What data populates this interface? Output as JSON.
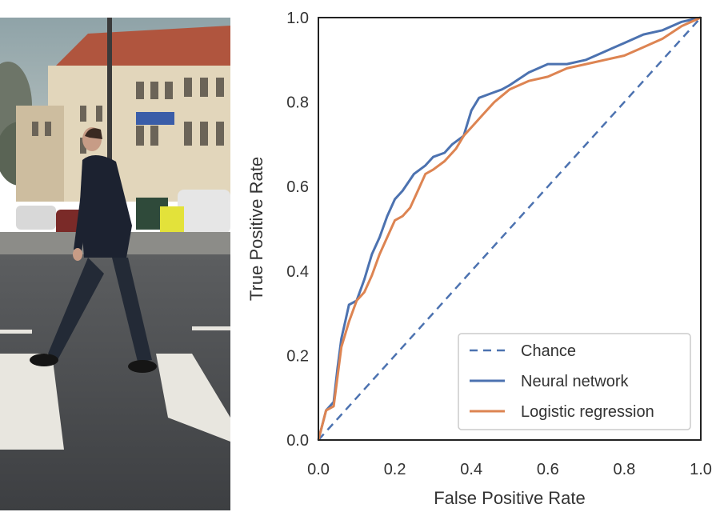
{
  "photo": {
    "subject": "pedestrian-crossing-street"
  },
  "chart_data": {
    "type": "line",
    "xlabel": "False Positive Rate",
    "ylabel": "True Positive Rate",
    "xlim": [
      0.0,
      1.0
    ],
    "ylim": [
      0.0,
      1.0
    ],
    "xticks": [
      "0.0",
      "0.2",
      "0.4",
      "0.6",
      "0.8",
      "1.0"
    ],
    "yticks": [
      "0.0",
      "0.2",
      "0.4",
      "0.6",
      "0.8",
      "1.0"
    ],
    "grid": false,
    "legend_position": "bottom-right",
    "series": [
      {
        "name": "Chance",
        "color": "#4c72b0",
        "dash": true,
        "x": [
          0.0,
          1.0
        ],
        "y": [
          0.0,
          1.0
        ]
      },
      {
        "name": "Neural network",
        "color": "#4c72b0",
        "dash": false,
        "x": [
          0.0,
          0.02,
          0.04,
          0.05,
          0.06,
          0.07,
          0.08,
          0.1,
          0.12,
          0.14,
          0.16,
          0.18,
          0.2,
          0.22,
          0.25,
          0.28,
          0.3,
          0.33,
          0.35,
          0.38,
          0.4,
          0.42,
          0.45,
          0.48,
          0.5,
          0.55,
          0.6,
          0.65,
          0.7,
          0.75,
          0.8,
          0.85,
          0.9,
          0.95,
          1.0
        ],
        "y": [
          0.0,
          0.07,
          0.09,
          0.17,
          0.24,
          0.28,
          0.32,
          0.33,
          0.38,
          0.44,
          0.48,
          0.53,
          0.57,
          0.59,
          0.63,
          0.65,
          0.67,
          0.68,
          0.7,
          0.72,
          0.78,
          0.81,
          0.82,
          0.83,
          0.84,
          0.87,
          0.89,
          0.89,
          0.9,
          0.92,
          0.94,
          0.96,
          0.97,
          0.99,
          1.0
        ]
      },
      {
        "name": "Logistic regression",
        "color": "#dd8452",
        "dash": false,
        "x": [
          0.0,
          0.02,
          0.04,
          0.05,
          0.06,
          0.08,
          0.1,
          0.12,
          0.14,
          0.16,
          0.18,
          0.2,
          0.22,
          0.24,
          0.26,
          0.28,
          0.3,
          0.33,
          0.36,
          0.38,
          0.4,
          0.43,
          0.46,
          0.5,
          0.55,
          0.6,
          0.65,
          0.7,
          0.75,
          0.8,
          0.85,
          0.9,
          0.95,
          1.0
        ],
        "y": [
          0.0,
          0.07,
          0.08,
          0.15,
          0.22,
          0.28,
          0.33,
          0.35,
          0.39,
          0.44,
          0.48,
          0.52,
          0.53,
          0.55,
          0.59,
          0.63,
          0.64,
          0.66,
          0.69,
          0.72,
          0.74,
          0.77,
          0.8,
          0.83,
          0.85,
          0.86,
          0.88,
          0.89,
          0.9,
          0.91,
          0.93,
          0.95,
          0.98,
          1.0
        ]
      }
    ]
  }
}
